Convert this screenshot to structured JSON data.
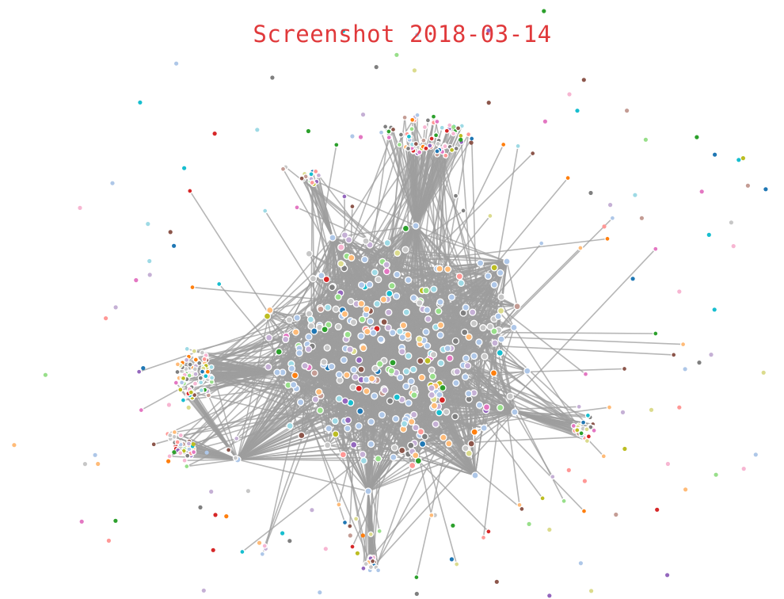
{
  "title": "Screenshot 2018-03-14",
  "palette": [
    "#1f77b4",
    "#ff7f0e",
    "#2ca02c",
    "#d62728",
    "#9467bd",
    "#8c564b",
    "#e377c2",
    "#7f7f7f",
    "#bcbd22",
    "#17becf",
    "#aec7e8",
    "#ffbb78",
    "#98df8a",
    "#ff9896",
    "#c5b0d5",
    "#c49c94",
    "#f7b6d2",
    "#c7c7c7",
    "#dbdb8d",
    "#9edae5"
  ],
  "colors": {
    "edge": "#9e9e9e",
    "node_stroke": "#ffffff",
    "title": "#e0393b",
    "background": "#ffffff"
  }
}
